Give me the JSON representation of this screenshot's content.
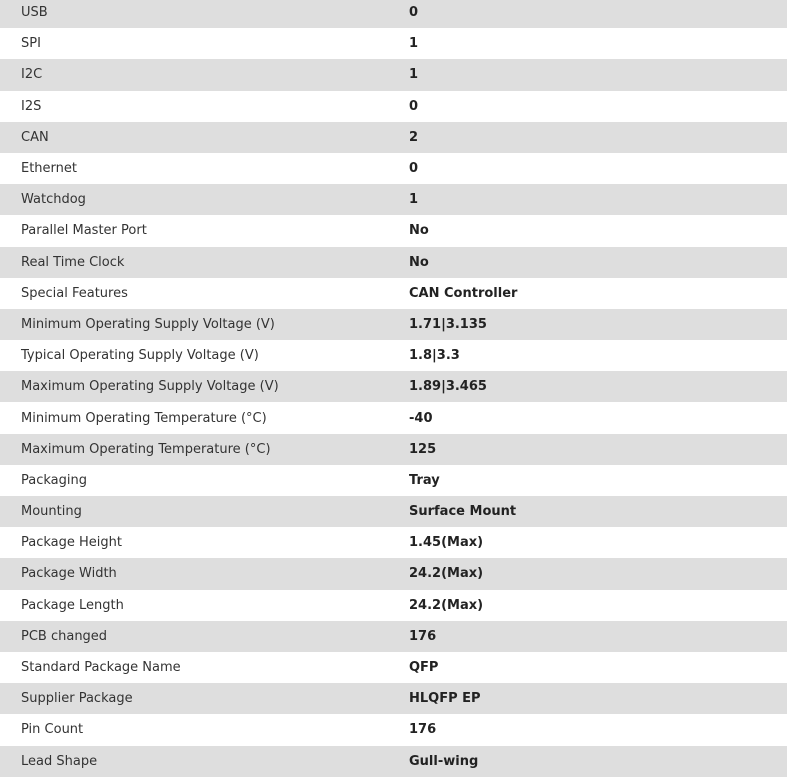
{
  "specs": [
    {
      "label": "USB",
      "value": "0"
    },
    {
      "label": "SPI",
      "value": "1"
    },
    {
      "label": "I2C",
      "value": "1"
    },
    {
      "label": "I2S",
      "value": "0"
    },
    {
      "label": "CAN",
      "value": "2"
    },
    {
      "label": "Ethernet",
      "value": "0"
    },
    {
      "label": "Watchdog",
      "value": "1"
    },
    {
      "label": "Parallel Master Port",
      "value": "No"
    },
    {
      "label": "Real Time Clock",
      "value": "No"
    },
    {
      "label": "Special Features",
      "value": "CAN Controller"
    },
    {
      "label": "Minimum Operating Supply Voltage (V)",
      "value": "1.71|3.135"
    },
    {
      "label": "Typical Operating Supply Voltage (V)",
      "value": "1.8|3.3"
    },
    {
      "label": "Maximum Operating Supply Voltage (V)",
      "value": "1.89|3.465"
    },
    {
      "label": "Minimum Operating Temperature (°C)",
      "value": "-40"
    },
    {
      "label": "Maximum Operating Temperature (°C)",
      "value": "125"
    },
    {
      "label": "Packaging",
      "value": "Tray"
    },
    {
      "label": "Mounting",
      "value": "Surface Mount"
    },
    {
      "label": "Package Height",
      "value": "1.45(Max)"
    },
    {
      "label": "Package Width",
      "value": "24.2(Max)"
    },
    {
      "label": "Package Length",
      "value": "24.2(Max)"
    },
    {
      "label": "PCB changed",
      "value": "176"
    },
    {
      "label": "Standard Package Name",
      "value": "QFP"
    },
    {
      "label": "Supplier Package",
      "value": "HLQFP EP"
    },
    {
      "label": "Pin Count",
      "value": "176"
    },
    {
      "label": "Lead Shape",
      "value": "Gull-wing"
    }
  ]
}
